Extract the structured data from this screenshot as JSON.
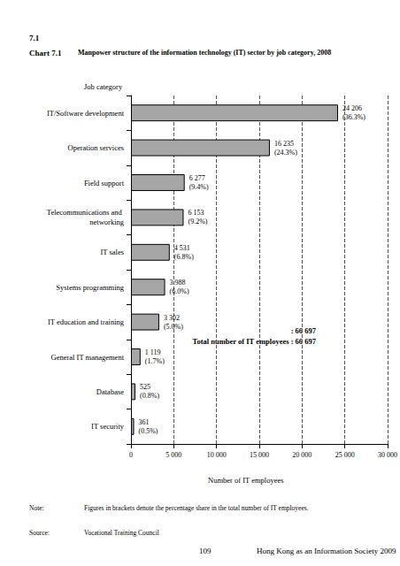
{
  "chart_data": {
    "type": "bar",
    "section": "7.1",
    "chart_number": "Chart 7.1",
    "title": "Manpower structure of the information technology (IT) sector by job category, 2008",
    "y_label": "Job category",
    "x_label": "Number of IT employees",
    "orientation": "horizontal",
    "categories": [
      "IT/Software development",
      "Operation services",
      "Field support",
      "Telecommunications and networking",
      "IT sales",
      "Systems programming",
      "IT education and training",
      "General IT management",
      "Database",
      "IT security"
    ],
    "values": [
      24206,
      16235,
      6277,
      6153,
      4531,
      3988,
      3302,
      1119,
      525,
      361
    ],
    "value_labels": [
      "24 206\n(36.3%)",
      "16 235\n(24.3%)",
      "6 277\n(9.4%)",
      "6 153\n(9.2%)",
      "4 531\n(6.8%)",
      "3 988\n(6.0%)",
      "3 302\n(5.0%)",
      "1 119\n(1.7%)",
      "525\n(0.8%)",
      "361\n(0.5%)"
    ],
    "data_labels": true,
    "color": "#a6a6a6",
    "xlim": [
      0,
      30000
    ],
    "xticks": [
      0,
      {
        "value": 5000,
        "label": "5 000"
      },
      {
        "value": 10000,
        "label": "10 000"
      },
      {
        "value": 15000,
        "label": "15 000"
      },
      {
        "value": 20000,
        "label": "20 000"
      },
      {
        "value": 25000,
        "label": "25 000"
      },
      {
        "value": 30000,
        "label": "30 000"
      }
    ],
    "grid": true,
    "annotations": [
      ": 66 697",
      "Total number of IT employees : 66 697"
    ],
    "note_label": "Note:",
    "note": "Figures in brackets denote the percentage share in the total number of IT employees.",
    "source_label": "Source:",
    "source": "Vocational Training Council",
    "page_number": "109",
    "publication": "Hong Kong as an Information Society 2009"
  }
}
